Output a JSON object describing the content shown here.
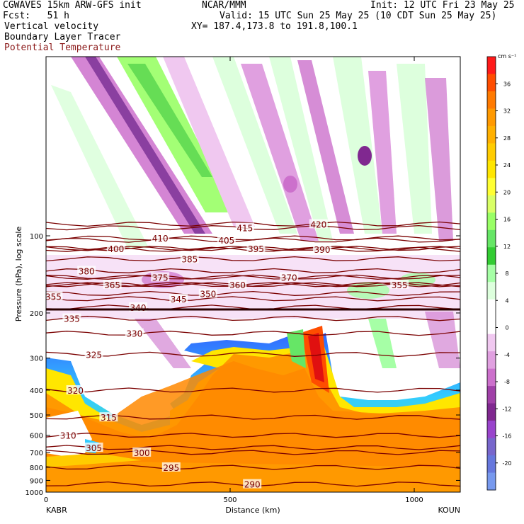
{
  "header": {
    "line1_left": "CGWAVES 15km ARW-GFS init",
    "line1_center": "NCAR/MMM",
    "line1_right": "Init: 12 UTC Fri 23 May 25",
    "line2_left": "Fcst:   51 h",
    "line2_right": "Valid: 15 UTC Sun 25 May 25 (10 CDT Sun 25 May 25)",
    "line3_left": "Vertical velocity",
    "line3_right": "XY= 187.4,173.8 to 191.8,100.1",
    "line4_left": "Boundary Layer Tracer",
    "line5_left": "Potential Temperature"
  },
  "colors": {
    "theta_contour": "#7a0000",
    "background": "#ffffff"
  },
  "chart_data": {
    "type": "heatmap",
    "title": "Vertical velocity",
    "xlabel": "Distance (km)",
    "ylabel": "Pressure (hPa), log scale",
    "x_ticks": [
      0,
      500,
      1000
    ],
    "xlim": [
      0,
      1125
    ],
    "y_ticks": [
      100,
      200,
      300,
      400,
      500,
      600,
      700,
      800,
      900,
      1000
    ],
    "y_scale": "log",
    "ylim": [
      1000,
      20
    ],
    "x_start_label": "KABR",
    "x_end_label": "KOUN",
    "colorbar": {
      "units": "cm s⁻¹",
      "labels": [
        36,
        32,
        28,
        24,
        20,
        16,
        12,
        8,
        4,
        0,
        -4,
        -8,
        -12,
        -16,
        -20
      ],
      "colors": [
        "#ff1a1a",
        "#ff4d00",
        "#ff7a00",
        "#ff9900",
        "#ffb000",
        "#ffcc00",
        "#ffe600",
        "#ffff33",
        "#d9ff66",
        "#99ff66",
        "#66e666",
        "#33cc33",
        "#a6ffa6",
        "#ddffdd",
        "#ffffff",
        "#ffffff",
        "#f0c8f0",
        "#e0a0e0",
        "#cc70cc",
        "#a040a8",
        "#802890",
        "#9944cc",
        "#7766cc",
        "#6677dd",
        "#7799ee"
      ]
    },
    "theta_contours": [
      {
        "value": 420,
        "p": 90,
        "x": [
          [
            740,
            790
          ]
        ]
      },
      {
        "value": 415,
        "p": 93,
        "x": [
          [
            540,
            1020
          ]
        ]
      },
      {
        "value": 410,
        "p": 102,
        "x": [
          [
            310
          ]
        ]
      },
      {
        "value": 405,
        "p": 104,
        "x": [
          [
            490,
            1050
          ]
        ]
      },
      {
        "value": 400,
        "p": 112,
        "x": [
          [
            190,
            900
          ]
        ]
      },
      {
        "value": 395,
        "p": 112,
        "x": [
          [
            570,
            950
          ]
        ]
      },
      {
        "value": 390,
        "p": 113,
        "x": [
          [
            750
          ]
        ]
      },
      {
        "value": 385,
        "p": 123,
        "x": [
          [
            390,
            800
          ]
        ]
      },
      {
        "value": 380,
        "p": 137,
        "x": [
          [
            110,
            1010
          ]
        ]
      },
      {
        "value": 375,
        "p": 145,
        "x": [
          [
            310
          ]
        ]
      },
      {
        "value": 370,
        "p": 145,
        "x": [
          [
            660,
            910
          ]
        ]
      },
      {
        "value": 365,
        "p": 155,
        "x": [
          [
            180
          ]
        ]
      },
      {
        "value": 360,
        "p": 155,
        "x": [
          [
            520
          ]
        ]
      },
      {
        "value": 355,
        "p": 155,
        "x": [
          [
            960
          ]
        ]
      },
      {
        "value": 355,
        "p": 172,
        "x": [
          [
            20
          ]
        ]
      },
      {
        "value": 350,
        "p": 168,
        "x": [
          [
            440,
            800
          ]
        ]
      },
      {
        "value": 345,
        "p": 176,
        "x": [
          [
            360,
            910
          ]
        ]
      },
      {
        "value": 340,
        "p": 190,
        "x": [
          [
            250,
            1070
          ]
        ]
      },
      {
        "value": 335,
        "p": 210,
        "x": [
          [
            70,
            920
          ]
        ]
      },
      {
        "value": 330,
        "p": 240,
        "x": [
          [
            240,
            900
          ]
        ]
      },
      {
        "value": 325,
        "p": 290,
        "x": [
          [
            130,
            1010
          ]
        ]
      },
      {
        "value": 320,
        "p": 400,
        "x": [
          [
            80,
            950
          ]
        ]
      },
      {
        "value": 315,
        "p": 510,
        "x": [
          [
            170,
            850
          ]
        ]
      },
      {
        "value": 310,
        "p": 600,
        "x": [
          [
            60,
            1070
          ]
        ]
      },
      {
        "value": 305,
        "p": 670,
        "x": [
          [
            130,
            680
          ]
        ]
      },
      {
        "value": 300,
        "p": 700,
        "x": [
          [
            260,
            910
          ]
        ]
      },
      {
        "value": 295,
        "p": 800,
        "x": [
          [
            340,
            830
          ]
        ]
      },
      {
        "value": 290,
        "p": 930,
        "x": [
          [
            560
          ]
        ]
      }
    ]
  }
}
